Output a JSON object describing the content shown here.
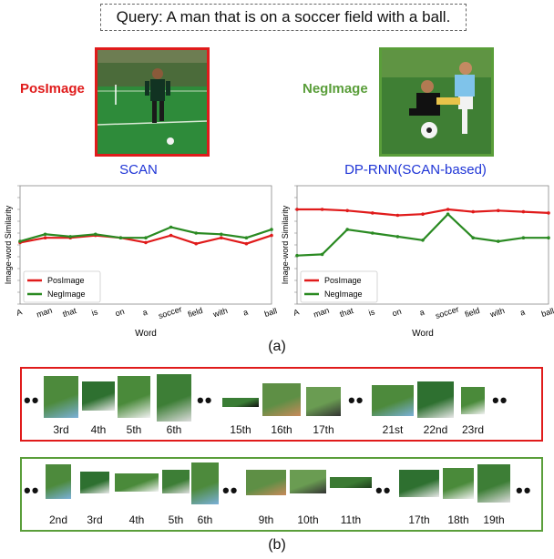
{
  "query": "Query: A man that is on a soccer field with a ball.",
  "pos_label": "PosImage",
  "neg_label": "NegImage",
  "colors": {
    "pos": "#e01b1b",
    "neg": "#5a9e3a",
    "method_title": "#1f35d6"
  },
  "chart_data": [
    {
      "type": "line",
      "title": "SCAN",
      "xlabel": "Word",
      "ylabel": "Image-word Similarity",
      "categories": [
        "A",
        "man",
        "that",
        "is",
        "on",
        "a",
        "soccer",
        "field",
        "with",
        "a",
        "ball"
      ],
      "ylim": [
        0,
        1
      ],
      "legend": "bottom-left",
      "series": [
        {
          "name": "PosImage",
          "values": [
            0.52,
            0.56,
            0.56,
            0.58,
            0.56,
            0.52,
            0.58,
            0.51,
            0.56,
            0.51,
            0.58
          ]
        },
        {
          "name": "NegImage",
          "values": [
            0.53,
            0.59,
            0.57,
            0.59,
            0.56,
            0.56,
            0.65,
            0.6,
            0.59,
            0.56,
            0.63
          ]
        }
      ]
    },
    {
      "type": "line",
      "title": "DP-RNN(SCAN-based)",
      "xlabel": "Word",
      "ylabel": "Image-word Similarity",
      "categories": [
        "A",
        "man",
        "that",
        "is",
        "on",
        "a",
        "soccer",
        "field",
        "with",
        "a",
        "ball"
      ],
      "ylim": [
        0,
        1
      ],
      "legend": "bottom-left",
      "series": [
        {
          "name": "PosImage",
          "values": [
            0.8,
            0.8,
            0.79,
            0.77,
            0.75,
            0.76,
            0.8,
            0.78,
            0.79,
            0.78,
            0.77
          ]
        },
        {
          "name": "NegImage",
          "values": [
            0.41,
            0.42,
            0.63,
            0.6,
            0.57,
            0.54,
            0.76,
            0.56,
            0.53,
            0.56,
            0.56
          ]
        }
      ]
    }
  ],
  "caption_a": "(a)",
  "caption_b": "(b)",
  "dots": "••",
  "pos_ranks": [
    "3rd",
    "4th",
    "5th",
    "6th",
    "15th",
    "16th",
    "17th",
    "21st",
    "22nd",
    "23rd"
  ],
  "neg_ranks": [
    "2nd",
    "3rd",
    "4th",
    "5th",
    "6th",
    "9th",
    "10th",
    "11th",
    "17th",
    "18th",
    "19th"
  ]
}
